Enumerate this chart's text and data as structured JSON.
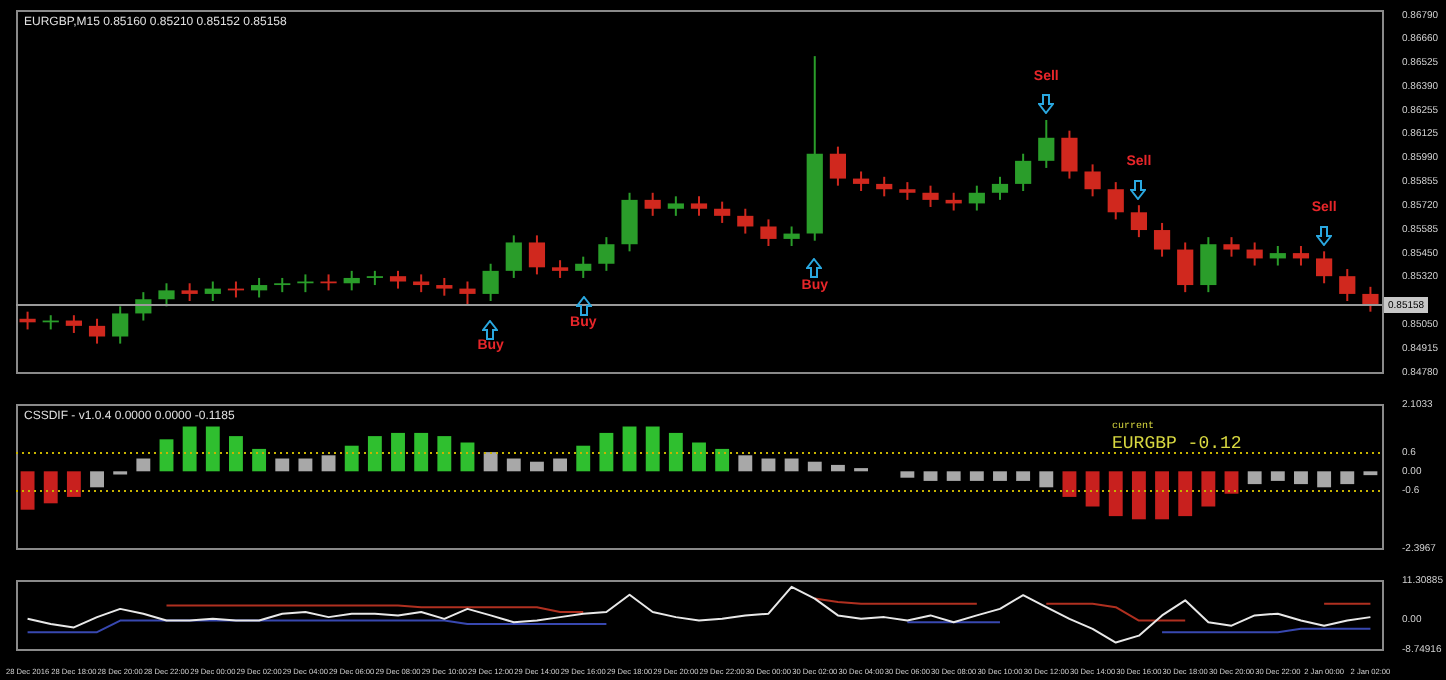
{
  "chart_data": [
    {
      "type": "candlestick",
      "title": "EURGBP,M15 0.85160 0.85210 0.85152 0.85158",
      "categories": [
        "28 Dec 2016",
        null,
        "28 Dec 18:00",
        null,
        "28 Dec 20:00",
        null,
        "28 Dec 22:00",
        null,
        "29 Dec 00:00",
        null,
        "29 Dec 02:00",
        null,
        "29 Dec 04:00",
        null,
        "29 Dec 06:00",
        null,
        "29 Dec 08:00",
        null,
        "29 Dec 10:00",
        null,
        "29 Dec 12:00",
        null,
        "29 Dec 14:00",
        null,
        "29 Dec 16:00",
        null,
        "29 Dec 18:00",
        null,
        "29 Dec 20:00",
        null,
        "29 Dec 22:00",
        null,
        "30 Dec 00:00",
        null,
        "30 Dec 02:00",
        null,
        "30 Dec 04:00",
        null,
        "30 Dec 06:00",
        null,
        "30 Dec 08:00",
        null,
        "30 Dec 10:00",
        null,
        "30 Dec 12:00",
        null,
        "30 Dec 14:00",
        null,
        "30 Dec 16:00",
        null,
        "30 Dec 18:00",
        null,
        "30 Dec 20:00",
        null,
        "30 Dec 22:00",
        null,
        "2 Jan 00:00",
        null,
        "2 Jan 02:00"
      ],
      "ohlc": [
        [
          0.8508,
          0.8512,
          0.8502,
          0.8506
        ],
        [
          0.8506,
          0.851,
          0.8502,
          0.8507
        ],
        [
          0.8507,
          0.851,
          0.85,
          0.8504
        ],
        [
          0.8504,
          0.8508,
          0.8494,
          0.8498
        ],
        [
          0.8498,
          0.8515,
          0.8494,
          0.8511
        ],
        [
          0.8511,
          0.8523,
          0.8507,
          0.8519
        ],
        [
          0.8519,
          0.8528,
          0.8515,
          0.8524
        ],
        [
          0.8524,
          0.8528,
          0.8518,
          0.8522
        ],
        [
          0.8522,
          0.8529,
          0.8518,
          0.8525
        ],
        [
          0.8525,
          0.8529,
          0.852,
          0.8524
        ],
        [
          0.8524,
          0.8531,
          0.852,
          0.8527
        ],
        [
          0.8527,
          0.8531,
          0.8523,
          0.8528
        ],
        [
          0.8528,
          0.8533,
          0.8523,
          0.8529
        ],
        [
          0.8529,
          0.8533,
          0.8524,
          0.8528
        ],
        [
          0.8528,
          0.8535,
          0.8524,
          0.8531
        ],
        [
          0.8531,
          0.8535,
          0.8527,
          0.8532
        ],
        [
          0.8532,
          0.8535,
          0.8525,
          0.8529
        ],
        [
          0.8529,
          0.8533,
          0.8523,
          0.8527
        ],
        [
          0.8527,
          0.8531,
          0.8521,
          0.8525
        ],
        [
          0.8525,
          0.8529,
          0.8516,
          0.8522
        ],
        [
          0.8522,
          0.8539,
          0.8518,
          0.8535
        ],
        [
          0.8535,
          0.8555,
          0.8531,
          0.8551
        ],
        [
          0.8551,
          0.8555,
          0.8533,
          0.8537
        ],
        [
          0.8537,
          0.8541,
          0.8531,
          0.8535
        ],
        [
          0.8535,
          0.8543,
          0.8531,
          0.8539
        ],
        [
          0.8539,
          0.8554,
          0.8535,
          0.855
        ],
        [
          0.855,
          0.8579,
          0.8546,
          0.8575
        ],
        [
          0.8575,
          0.8579,
          0.8566,
          0.857
        ],
        [
          0.857,
          0.8577,
          0.8566,
          0.8573
        ],
        [
          0.8573,
          0.8577,
          0.8566,
          0.857
        ],
        [
          0.857,
          0.8574,
          0.8562,
          0.8566
        ],
        [
          0.8566,
          0.857,
          0.8556,
          0.856
        ],
        [
          0.856,
          0.8564,
          0.8549,
          0.8553
        ],
        [
          0.8553,
          0.856,
          0.8549,
          0.8556
        ],
        [
          0.8556,
          0.8656,
          0.8552,
          0.8601
        ],
        [
          0.8601,
          0.8605,
          0.8583,
          0.8587
        ],
        [
          0.8587,
          0.8591,
          0.858,
          0.8584
        ],
        [
          0.8584,
          0.8588,
          0.8577,
          0.8581
        ],
        [
          0.8581,
          0.8585,
          0.8575,
          0.8579
        ],
        [
          0.8579,
          0.8583,
          0.8571,
          0.8575
        ],
        [
          0.8575,
          0.8579,
          0.8569,
          0.8573
        ],
        [
          0.8573,
          0.8583,
          0.8569,
          0.8579
        ],
        [
          0.8579,
          0.8588,
          0.8575,
          0.8584
        ],
        [
          0.8584,
          0.8601,
          0.858,
          0.8597
        ],
        [
          0.8597,
          0.862,
          0.8593,
          0.861
        ],
        [
          0.861,
          0.8614,
          0.8587,
          0.8591
        ],
        [
          0.8591,
          0.8595,
          0.8577,
          0.8581
        ],
        [
          0.8581,
          0.8585,
          0.8564,
          0.8568
        ],
        [
          0.8568,
          0.8572,
          0.8554,
          0.8558
        ],
        [
          0.8558,
          0.8562,
          0.8543,
          0.8547
        ],
        [
          0.8547,
          0.8551,
          0.8523,
          0.8527
        ],
        [
          0.8527,
          0.8554,
          0.8523,
          0.855
        ],
        [
          0.855,
          0.8554,
          0.8543,
          0.8547
        ],
        [
          0.8547,
          0.8551,
          0.8538,
          0.8542
        ],
        [
          0.8542,
          0.8549,
          0.8538,
          0.8545
        ],
        [
          0.8545,
          0.8549,
          0.8538,
          0.8542
        ],
        [
          0.8542,
          0.8546,
          0.8528,
          0.8532
        ],
        [
          0.8532,
          0.8536,
          0.8518,
          0.8522
        ],
        [
          0.8522,
          0.8526,
          0.8512,
          0.8516
        ]
      ],
      "colors": [
        "#d0281e",
        "#2a9d2a",
        "#d0281e",
        "#d0281e",
        "#2a9d2a",
        "#2a9d2a",
        "#2a9d2a",
        "#d0281e",
        "#2a9d2a",
        "#d0281e",
        "#2a9d2a",
        "#2a9d2a",
        "#2a9d2a",
        "#d0281e",
        "#2a9d2a",
        "#2a9d2a",
        "#d0281e",
        "#d0281e",
        "#d0281e",
        "#d0281e",
        "#2a9d2a",
        "#2a9d2a",
        "#d0281e",
        "#d0281e",
        "#2a9d2a",
        "#2a9d2a",
        "#2a9d2a",
        "#d0281e",
        "#2a9d2a",
        "#d0281e",
        "#d0281e",
        "#d0281e",
        "#d0281e",
        "#2a9d2a",
        "#2a9d2a",
        "#d0281e",
        "#d0281e",
        "#d0281e",
        "#d0281e",
        "#d0281e",
        "#d0281e",
        "#2a9d2a",
        "#2a9d2a",
        "#2a9d2a",
        "#2a9d2a",
        "#d0281e",
        "#d0281e",
        "#d0281e",
        "#d0281e",
        "#d0281e",
        "#d0281e",
        "#2a9d2a",
        "#d0281e",
        "#d0281e",
        "#2a9d2a",
        "#d0281e",
        "#d0281e",
        "#d0281e",
        "#d0281e"
      ],
      "ylim": [
        0.8478,
        0.8682
      ],
      "yticks": [
        {
          "value": 0.8679,
          "label": "0.86790"
        },
        {
          "value": 0.8666,
          "label": "0.86660"
        },
        0.86525,
        {
          "value": 0.8639,
          "label": "0.86390"
        },
        0.86255,
        0.86125,
        {
          "value": 0.8599,
          "label": "0.85990"
        },
        0.85855,
        {
          "value": 0.8572,
          "label": "0.85720"
        },
        0.85585,
        {
          "value": 0.8545,
          "label": "0.85450"
        },
        {
          "value": 0.8532,
          "label": "0.85320"
        },
        {
          "value": 0.8505,
          "label": "0.85050"
        },
        0.84915,
        {
          "value": 0.8478,
          "label": "0.84780"
        }
      ],
      "ref_lines": [
        {
          "axis": "y",
          "value": 0.85158,
          "label": "0.85158",
          "color": "#9a9a9a"
        }
      ],
      "annotations": [
        {
          "text": "Buy",
          "x": "29 Dec 12:00",
          "y": 0.8518
        },
        {
          "text": "Buy",
          "x": "29 Dec 16:00",
          "y": 0.8531
        },
        {
          "text": "Buy",
          "x": "30 Dec 02:00",
          "y": 0.8552
        },
        {
          "text": "Sell",
          "x": "30 Dec 12:00",
          "y": 0.862
        },
        {
          "text": "Sell",
          "x": "30 Dec 16:00",
          "y": 0.8572
        },
        {
          "text": "Sell",
          "x": "2 Jan 00:00",
          "y": 0.8546
        }
      ],
      "tick_labels": "y"
    },
    {
      "type": "bar",
      "title": "CSSDIF - v1.0.4 0.0000 0.0000 -0.1185",
      "categories": [
        "28 Dec 2016",
        null,
        "28 Dec 18:00",
        null,
        "28 Dec 20:00",
        null,
        "28 Dec 22:00",
        null,
        "29 Dec 00:00",
        null,
        "29 Dec 02:00",
        null,
        "29 Dec 04:00",
        null,
        "29 Dec 06:00",
        null,
        "29 Dec 08:00",
        null,
        "29 Dec 10:00",
        null,
        "29 Dec 12:00",
        null,
        "29 Dec 14:00",
        null,
        "29 Dec 16:00",
        null,
        "29 Dec 18:00",
        null,
        "29 Dec 20:00",
        null,
        "29 Dec 22:00",
        null,
        "30 Dec 00:00",
        null,
        "30 Dec 02:00",
        null,
        "30 Dec 04:00",
        null,
        "30 Dec 06:00",
        null,
        "30 Dec 08:00",
        null,
        "30 Dec 10:00",
        null,
        "30 Dec 12:00",
        null,
        "30 Dec 14:00",
        null,
        "30 Dec 16:00",
        null,
        "30 Dec 18:00",
        null,
        "30 Dec 20:00",
        null,
        "30 Dec 22:00",
        null,
        "2 Jan 00:00",
        null,
        "2 Jan 02:00"
      ],
      "values": [
        -1.2,
        -1.0,
        -0.8,
        -0.5,
        -0.1,
        0.4,
        1.0,
        1.4,
        1.4,
        1.1,
        0.7,
        0.4,
        0.4,
        0.5,
        0.8,
        1.1,
        1.2,
        1.2,
        1.1,
        0.9,
        0.6,
        0.4,
        0.3,
        0.4,
        0.8,
        1.2,
        1.4,
        1.4,
        1.2,
        0.9,
        0.7,
        0.5,
        0.4,
        0.4,
        0.3,
        0.2,
        0.1,
        0.0,
        -0.2,
        -0.3,
        -0.3,
        -0.3,
        -0.3,
        -0.3,
        -0.5,
        -0.8,
        -1.1,
        -1.4,
        -1.5,
        -1.5,
        -1.4,
        -1.1,
        -0.7,
        -0.4,
        -0.3,
        -0.4,
        -0.5,
        -0.4,
        -0.12
      ],
      "colors": [
        "#c8201e",
        "#c8201e",
        "#c8201e",
        "#a8a8a8",
        "#a8a8a8",
        "#a8a8a8",
        "#2fbf2f",
        "#2fbf2f",
        "#2fbf2f",
        "#2fbf2f",
        "#2fbf2f",
        "#a8a8a8",
        "#a8a8a8",
        "#a8a8a8",
        "#2fbf2f",
        "#2fbf2f",
        "#2fbf2f",
        "#2fbf2f",
        "#2fbf2f",
        "#2fbf2f",
        "#a8a8a8",
        "#a8a8a8",
        "#a8a8a8",
        "#a8a8a8",
        "#2fbf2f",
        "#2fbf2f",
        "#2fbf2f",
        "#2fbf2f",
        "#2fbf2f",
        "#2fbf2f",
        "#2fbf2f",
        "#a8a8a8",
        "#a8a8a8",
        "#a8a8a8",
        "#a8a8a8",
        "#a8a8a8",
        "#a8a8a8",
        "#a8a8a8",
        "#a8a8a8",
        "#a8a8a8",
        "#a8a8a8",
        "#a8a8a8",
        "#a8a8a8",
        "#a8a8a8",
        "#a8a8a8",
        "#c8201e",
        "#c8201e",
        "#c8201e",
        "#c8201e",
        "#c8201e",
        "#c8201e",
        "#c8201e",
        "#c8201e",
        "#a8a8a8",
        "#a8a8a8",
        "#a8a8a8",
        "#a8a8a8",
        "#a8a8a8",
        "#a8a8a8"
      ],
      "ylim": [
        -2.3967,
        2.1033
      ],
      "yticks": [
        2.1033,
        0.6,
        {
          "value": 0,
          "label": "0.00"
        },
        -0.6,
        -2.3967
      ],
      "ref_lines": [
        {
          "axis": "y",
          "value": 0.6,
          "color": "#c8b400",
          "line_style": "dotted"
        },
        {
          "axis": "y",
          "value": -0.6,
          "color": "#c8b400",
          "line_style": "dotted"
        }
      ],
      "annotations": [
        "current",
        "EURGBP -0.12"
      ],
      "tick_labels": "y"
    },
    {
      "type": "line",
      "categories": [
        "28 Dec 2016",
        null,
        "28 Dec 18:00",
        null,
        "28 Dec 20:00",
        null,
        "28 Dec 22:00",
        null,
        "29 Dec 00:00",
        null,
        "29 Dec 02:00",
        null,
        "29 Dec 04:00",
        null,
        "29 Dec 06:00",
        null,
        "29 Dec 08:00",
        null,
        "29 Dec 10:00",
        null,
        "29 Dec 12:00",
        null,
        "29 Dec 14:00",
        null,
        "29 Dec 16:00",
        null,
        "29 Dec 18:00",
        null,
        "29 Dec 20:00",
        null,
        "29 Dec 22:00",
        null,
        "30 Dec 00:00",
        null,
        "30 Dec 02:00",
        null,
        "30 Dec 04:00",
        null,
        "30 Dec 06:00",
        null,
        "30 Dec 08:00",
        null,
        "30 Dec 10:00",
        null,
        "30 Dec 12:00",
        null,
        "30 Dec 14:00",
        null,
        "30 Dec 16:00",
        null,
        "30 Dec 18:00",
        null,
        "30 Dec 20:00",
        null,
        "30 Dec 22:00",
        null,
        "2 Jan 00:00",
        null,
        "2 Jan 02:00"
      ],
      "series": [
        {
          "color": "#e8e8e8",
          "values": [
            0,
            -1.5,
            -2.5,
            0.5,
            2.9,
            1.5,
            -0.5,
            -0.5,
            0,
            -0.5,
            -0.5,
            1.5,
            2.0,
            0.5,
            1.5,
            1.5,
            1.0,
            2.0,
            0,
            2.9,
            1.0,
            -1.0,
            -0.5,
            0.5,
            1.5,
            2.0,
            7.0,
            2.0,
            0.5,
            -0.5,
            0,
            1.0,
            1.5,
            9.3,
            5.9,
            1.0,
            0,
            0.5,
            -0.5,
            1.0,
            -1.0,
            1.0,
            2.9,
            6.9,
            3.4,
            0,
            -2.9,
            -6.9,
            -4.9,
            1.0,
            5.4,
            -1.0,
            -2.0,
            1.0,
            1.5,
            -0.5,
            -2.0,
            -0.5,
            0.5
          ]
        },
        {
          "color": "#b03020",
          "values": [
            null,
            null,
            null,
            null,
            null,
            null,
            3.9,
            3.9,
            3.9,
            3.9,
            3.9,
            3.9,
            3.9,
            3.9,
            3.9,
            3.9,
            3.9,
            3.4,
            3.4,
            3.4,
            3.4,
            3.4,
            3.4,
            2.0,
            2.0,
            null,
            null,
            null,
            null,
            null,
            null,
            null,
            null,
            null,
            5.9,
            4.9,
            4.4,
            4.4,
            4.4,
            4.4,
            4.4,
            4.4,
            null,
            null,
            4.4,
            4.4,
            4.4,
            3.4,
            -0.5,
            -0.5,
            -0.5,
            null,
            null,
            null,
            null,
            null,
            4.4,
            4.4,
            4.4
          ]
        },
        {
          "color": "#3848b0",
          "values": [
            -3.9,
            -3.9,
            -3.9,
            -3.9,
            -0.5,
            -0.5,
            -0.5,
            -0.5,
            -0.5,
            -0.5,
            -0.5,
            -0.5,
            -0.5,
            -0.5,
            -0.5,
            -0.5,
            -0.5,
            -0.5,
            -0.5,
            -1.5,
            -1.5,
            -1.5,
            -1.5,
            -1.5,
            -1.5,
            -1.5,
            null,
            null,
            null,
            null,
            null,
            null,
            null,
            null,
            null,
            null,
            null,
            null,
            -1.0,
            -1.0,
            -1.0,
            -1.0,
            -1.0,
            null,
            null,
            null,
            null,
            null,
            null,
            -3.9,
            -3.9,
            -3.9,
            -3.9,
            -3.9,
            -3.9,
            -2.9,
            -2.9,
            -2.9,
            -2.9
          ]
        }
      ],
      "ylim": [
        -8.74916,
        11.30885
      ],
      "yticks": [
        11.30885,
        {
          "value": 0,
          "label": "0.00"
        },
        -8.74916
      ]
    }
  ]
}
